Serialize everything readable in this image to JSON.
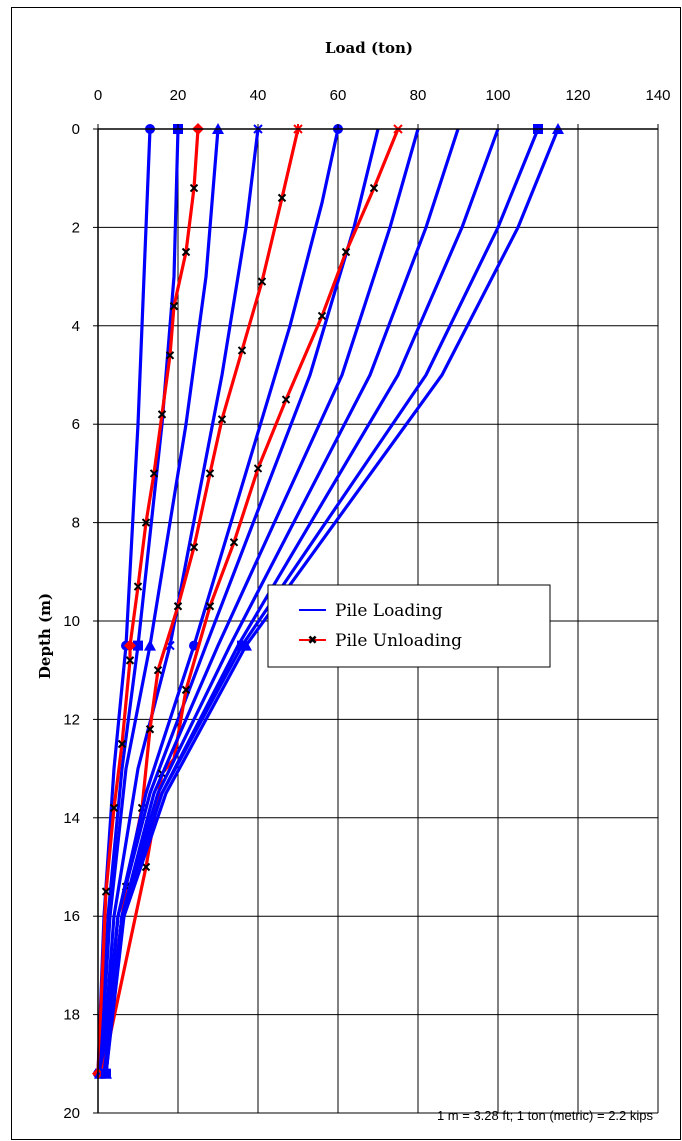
{
  "chart_data": {
    "type": "line",
    "title": "",
    "xlabel": "Load (ton)",
    "ylabel": "Depth (m)",
    "xlim": [
      0,
      140
    ],
    "ylim": [
      0,
      20
    ],
    "y_inverted": true,
    "x_axis_position": "top",
    "grid": true,
    "x_ticks": [
      "0",
      "20",
      "40",
      "60",
      "80",
      "100",
      "120",
      "140"
    ],
    "y_ticks": [
      "0",
      "2",
      "4",
      "6",
      "8",
      "10",
      "12",
      "14",
      "16",
      "18",
      "20"
    ],
    "legend": {
      "placement": "center-right",
      "entries": [
        {
          "name": "Pile Loading",
          "color": "#0000ff"
        },
        {
          "name": "Pile Unloading",
          "color": "#ff0000"
        }
      ]
    },
    "note": "1 m = 3.28 ft; 1 ton (metric) = 2.2 kips",
    "series": [
      {
        "group": "loading",
        "color": "#0000ff",
        "marker": "circle",
        "points": [
          [
            13,
            0
          ],
          [
            12,
            2
          ],
          [
            10,
            6
          ],
          [
            7,
            10.5
          ],
          [
            4,
            13
          ],
          [
            1.5,
            16
          ],
          [
            0,
            19.2
          ]
        ]
      },
      {
        "group": "loading",
        "color": "#0000ff",
        "marker": "square",
        "points": [
          [
            20,
            0
          ],
          [
            19,
            3
          ],
          [
            16,
            6
          ],
          [
            10,
            10.5
          ],
          [
            6,
            13
          ],
          [
            2.5,
            16
          ],
          [
            0.5,
            19.2
          ]
        ]
      },
      {
        "group": "unloading",
        "color": "#ff0000",
        "marker": "diamond",
        "points": [
          [
            25,
            0
          ],
          [
            24,
            1.2
          ],
          [
            22,
            2.5
          ],
          [
            19,
            3.6
          ],
          [
            18,
            4.6
          ],
          [
            16,
            5.8
          ],
          [
            14,
            7
          ],
          [
            12,
            8
          ],
          [
            10,
            9.3
          ],
          [
            8,
            10.5
          ],
          [
            8,
            10.8
          ],
          [
            6,
            12.5
          ],
          [
            4,
            13.8
          ],
          [
            2,
            15.5
          ],
          [
            0,
            19.2
          ]
        ],
        "unload_marks": [
          [
            24,
            1.2
          ],
          [
            22,
            2.5
          ],
          [
            19,
            3.6
          ],
          [
            18,
            4.6
          ],
          [
            16,
            5.8
          ],
          [
            14,
            7
          ],
          [
            12,
            8
          ],
          [
            10,
            9.3
          ],
          [
            8,
            10.8
          ],
          [
            6,
            12.5
          ],
          [
            4,
            13.8
          ],
          [
            2,
            15.5
          ]
        ]
      },
      {
        "group": "loading",
        "color": "#0000ff",
        "marker": "triangle",
        "points": [
          [
            30,
            0
          ],
          [
            27,
            3
          ],
          [
            22,
            6
          ],
          [
            13,
            10.5
          ],
          [
            7,
            13
          ],
          [
            3,
            16
          ],
          [
            0.5,
            19.2
          ]
        ]
      },
      {
        "group": "loading",
        "color": "#0000ff",
        "marker": "x",
        "points": [
          [
            40,
            0
          ],
          [
            37,
            2
          ],
          [
            31,
            5
          ],
          [
            18,
            10.5
          ],
          [
            10,
            13
          ],
          [
            4,
            16
          ],
          [
            1,
            19.2
          ]
        ]
      },
      {
        "group": "unloading",
        "color": "#ff0000",
        "marker": "star",
        "points": [
          [
            50,
            0
          ],
          [
            46,
            1.4
          ],
          [
            41,
            3.1
          ],
          [
            36,
            4.5
          ],
          [
            31,
            5.9
          ],
          [
            28,
            7
          ],
          [
            24,
            8.5
          ],
          [
            20,
            9.7
          ],
          [
            15,
            11
          ],
          [
            13,
            12.2
          ],
          [
            11,
            13.8
          ],
          [
            7,
            15.4
          ],
          [
            1,
            19.2
          ]
        ],
        "unload_marks": [
          [
            46,
            1.4
          ],
          [
            41,
            3.1
          ],
          [
            36,
            4.5
          ],
          [
            31,
            5.9
          ],
          [
            28,
            7
          ],
          [
            24,
            8.5
          ],
          [
            20,
            9.7
          ],
          [
            15,
            11
          ],
          [
            13,
            12.2
          ],
          [
            11,
            13.8
          ],
          [
            7,
            15.4
          ]
        ]
      },
      {
        "group": "loading",
        "color": "#0000ff",
        "marker": "circle",
        "points": [
          [
            60,
            0
          ],
          [
            56,
            1.5
          ],
          [
            48,
            4
          ],
          [
            24,
            10.5
          ],
          [
            12,
            13.5
          ],
          [
            5,
            16
          ],
          [
            1,
            19.2
          ]
        ]
      },
      {
        "group": "loading",
        "color": "#0000ff",
        "marker": "none",
        "points": [
          [
            70,
            0
          ],
          [
            64,
            2
          ],
          [
            53,
            5
          ],
          [
            27,
            10.5
          ],
          [
            13,
            13.5
          ],
          [
            5,
            16
          ],
          [
            1.5,
            19.2
          ]
        ]
      },
      {
        "group": "unloading",
        "color": "#ff0000",
        "marker": "x",
        "points": [
          [
            75,
            0
          ],
          [
            69,
            1.2
          ],
          [
            62,
            2.5
          ],
          [
            56,
            3.8
          ],
          [
            47,
            5.5
          ],
          [
            40,
            6.9
          ],
          [
            34,
            8.4
          ],
          [
            28,
            9.7
          ],
          [
            22,
            11.4
          ],
          [
            19,
            12.8
          ],
          [
            16,
            13.1
          ],
          [
            12,
            15
          ],
          [
            1,
            19.2
          ]
        ],
        "unload_marks": [
          [
            69,
            1.2
          ],
          [
            62,
            2.5
          ],
          [
            56,
            3.8
          ],
          [
            47,
            5.5
          ],
          [
            40,
            6.9
          ],
          [
            34,
            8.4
          ],
          [
            28,
            9.7
          ],
          [
            22,
            11.4
          ],
          [
            16,
            13.1
          ],
          [
            12,
            15
          ]
        ]
      },
      {
        "group": "loading",
        "color": "#0000ff",
        "marker": "none",
        "points": [
          [
            80,
            0
          ],
          [
            73,
            2
          ],
          [
            61,
            5
          ],
          [
            30,
            10.5
          ],
          [
            14,
            13.5
          ],
          [
            6,
            16
          ],
          [
            1.5,
            19.2
          ]
        ]
      },
      {
        "group": "loading",
        "color": "#0000ff",
        "marker": "none",
        "points": [
          [
            90,
            0
          ],
          [
            82,
            2
          ],
          [
            68,
            5
          ],
          [
            33,
            10.5
          ],
          [
            15,
            13.5
          ],
          [
            6,
            16
          ],
          [
            2,
            19.2
          ]
        ]
      },
      {
        "group": "loading",
        "color": "#0000ff",
        "marker": "none",
        "points": [
          [
            100,
            0
          ],
          [
            91,
            2
          ],
          [
            75,
            5
          ],
          [
            35,
            10.5
          ],
          [
            16,
            13.5
          ],
          [
            6,
            16
          ],
          [
            2,
            19.2
          ]
        ]
      },
      {
        "group": "loading",
        "color": "#0000ff",
        "marker": "square",
        "points": [
          [
            110,
            0
          ],
          [
            100,
            2
          ],
          [
            82,
            5
          ],
          [
            36,
            10.5
          ],
          [
            16,
            13.5
          ],
          [
            6,
            16
          ],
          [
            2,
            19.2
          ]
        ]
      },
      {
        "group": "loading",
        "color": "#0000ff",
        "marker": "triangle",
        "points": [
          [
            115,
            0
          ],
          [
            105,
            2
          ],
          [
            86,
            5
          ],
          [
            37,
            10.5
          ],
          [
            17,
            13.5
          ],
          [
            6.5,
            16
          ],
          [
            2,
            19.2
          ]
        ]
      }
    ]
  }
}
